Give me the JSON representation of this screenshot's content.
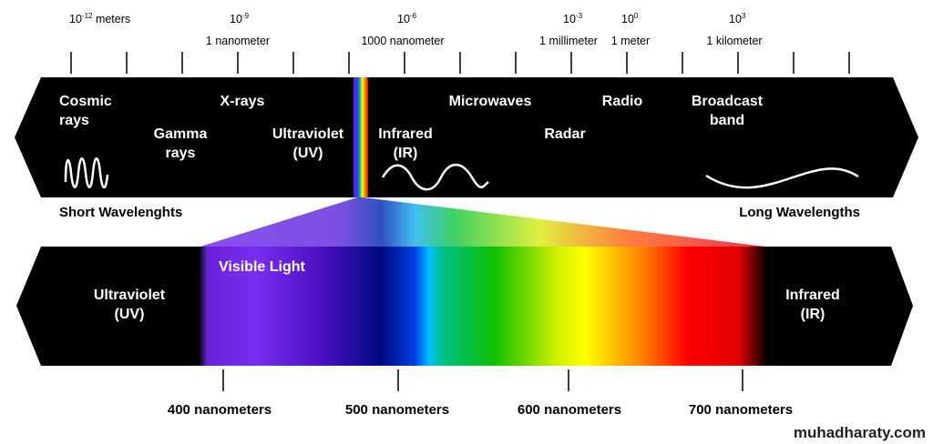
{
  "scale_labels": [
    {
      "exp": "10",
      "sup": "-12",
      "unit": " meters"
    },
    {
      "exp": "10",
      "sup": "-9",
      "unit": "1 nanometer"
    },
    {
      "exp": "10",
      "sup": "-6",
      "unit": "1000 nanometer"
    },
    {
      "exp": "10",
      "sup": "-3",
      "unit": "1 millimeter"
    },
    {
      "exp": "10",
      "sup": "0",
      "unit": "1 meter"
    },
    {
      "exp": "10",
      "sup": "3",
      "unit": "1 kilometer"
    }
  ],
  "spectrum_bands": {
    "cosmic": [
      "Cosmic",
      "rays"
    ],
    "xrays": "X-rays",
    "gamma": [
      "Gamma",
      "rays"
    ],
    "uv": [
      "Ultraviolet",
      "(UV)"
    ],
    "ir": [
      "Infrared",
      "(IR)"
    ],
    "microwaves": "Microwaves",
    "radar": "Radar",
    "radio": "Radio",
    "broadcast": [
      "Broadcast",
      "band"
    ]
  },
  "short_label": "Short Wavelenghts",
  "long_label": "Long Wavelengths",
  "visible": {
    "title": "Visible Light",
    "uv": [
      "Ultraviolet",
      "(UV)"
    ],
    "ir": [
      "Infrared",
      "(IR)"
    ],
    "ticks": [
      "400 nanometers",
      "500 nanometers",
      "600 nanometers",
      "700 nanometers"
    ]
  },
  "watermark": "muhadharaty.com"
}
